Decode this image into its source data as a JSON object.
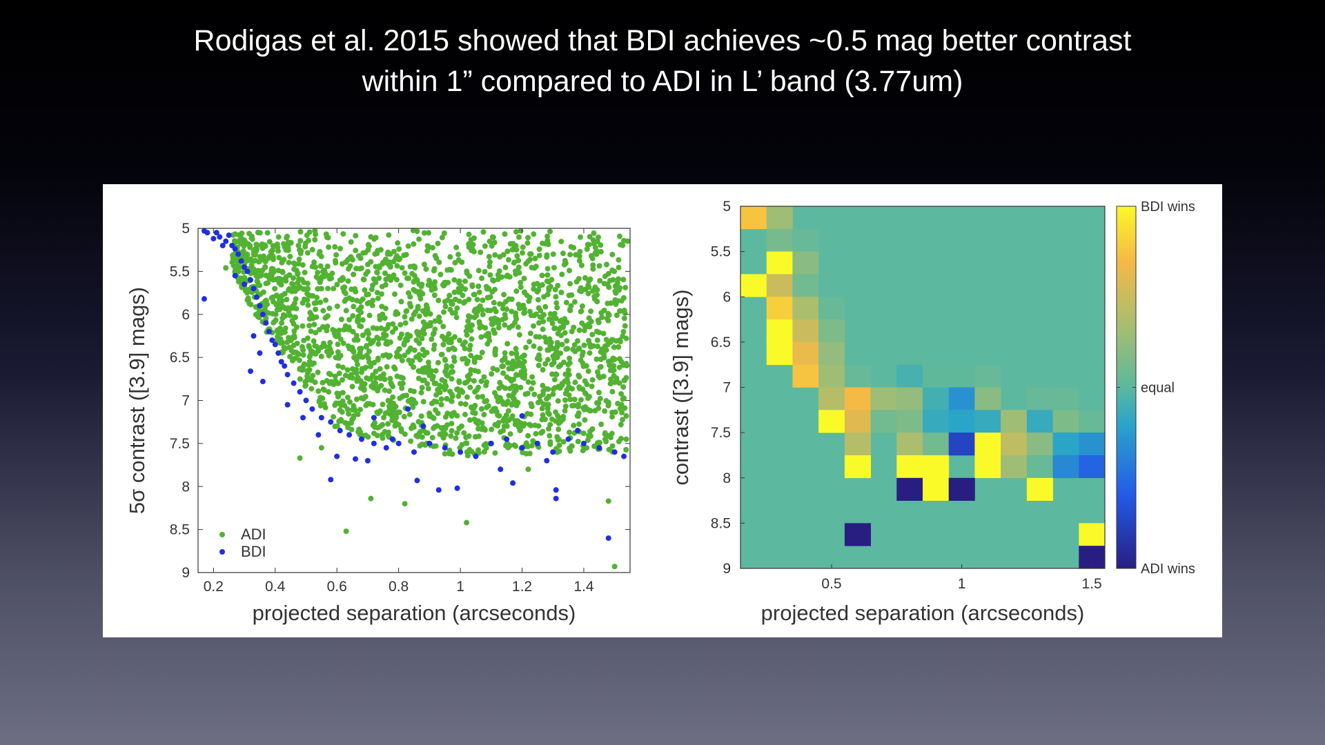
{
  "slide": {
    "title_line1": "Rodigas et al. 2015 showed that BDI achieves ~0.5 mag better contrast",
    "title_line2": "within 1” compared to ADI in L’ band (3.77um)"
  },
  "colors": {
    "adi": "#52b232",
    "bdi": "#1f2fe0",
    "background_top": "#000000",
    "background_bottom": "#6d6e82"
  },
  "chart_data": [
    {
      "type": "scatter",
      "xlabel": "projected separation (arcseconds)",
      "ylabel": "5σ contrast ([3.9] mags)",
      "xlim": [
        0.15,
        1.55
      ],
      "ylim": [
        5,
        9
      ],
      "y_inverted": true,
      "xticks": [
        0.2,
        0.4,
        0.6,
        0.8,
        1,
        1.2,
        1.4
      ],
      "xtick_labels": [
        "0.2",
        "0.4",
        "0.6",
        "0.8",
        "1",
        "1.2",
        "1.4"
      ],
      "yticks": [
        5,
        5.5,
        6,
        6.5,
        7,
        7.5,
        8,
        8.5,
        9
      ],
      "ytick_labels": [
        "5",
        "5.5",
        "6",
        "6.5",
        "7",
        "7.5",
        "8",
        "8.5",
        "9"
      ],
      "grid": false,
      "legend_position": "bottom-left",
      "series": [
        {
          "name": "ADI",
          "color": "#52b232",
          "approx_count": 2200,
          "points": [
            [
              0.48,
              7.67
            ],
            [
              0.63,
              8.52
            ],
            [
              0.71,
              8.14
            ],
            [
              0.82,
              8.2
            ],
            [
              1.02,
              8.42
            ],
            [
              1.48,
              8.17
            ],
            [
              1.5,
              8.93
            ],
            [
              1.22,
              7.8
            ],
            [
              0.95,
              7.62
            ],
            [
              0.55,
              7.55
            ],
            [
              0.24,
              5.46
            ]
          ]
        },
        {
          "name": "BDI",
          "color": "#1f2fe0",
          "points": [
            [
              0.17,
              5.03
            ],
            [
              0.18,
              5.05
            ],
            [
              0.2,
              5.12
            ],
            [
              0.21,
              5.05
            ],
            [
              0.22,
              5.1
            ],
            [
              0.23,
              5.2
            ],
            [
              0.24,
              5.15
            ],
            [
              0.25,
              5.08
            ],
            [
              0.26,
              5.2
            ],
            [
              0.27,
              5.24
            ],
            [
              0.28,
              5.3
            ],
            [
              0.29,
              5.38
            ],
            [
              0.3,
              5.45
            ],
            [
              0.31,
              5.5
            ],
            [
              0.32,
              5.6
            ],
            [
              0.33,
              5.7
            ],
            [
              0.34,
              5.8
            ],
            [
              0.35,
              5.9
            ],
            [
              0.36,
              6.0
            ],
            [
              0.37,
              6.1
            ],
            [
              0.38,
              6.2
            ],
            [
              0.39,
              6.3
            ],
            [
              0.4,
              6.35
            ],
            [
              0.41,
              6.45
            ],
            [
              0.42,
              6.55
            ],
            [
              0.43,
              6.6
            ],
            [
              0.44,
              6.7
            ],
            [
              0.46,
              6.8
            ],
            [
              0.48,
              6.9
            ],
            [
              0.5,
              7.0
            ],
            [
              0.52,
              7.1
            ],
            [
              0.55,
              7.2
            ],
            [
              0.58,
              7.25
            ],
            [
              0.61,
              7.35
            ],
            [
              0.64,
              7.4
            ],
            [
              0.68,
              7.45
            ],
            [
              0.72,
              7.5
            ],
            [
              0.76,
              7.55
            ],
            [
              0.8,
              7.5
            ],
            [
              0.85,
              7.6
            ],
            [
              0.9,
              7.5
            ],
            [
              0.95,
              7.55
            ],
            [
              1.0,
              7.6
            ],
            [
              1.05,
              7.65
            ],
            [
              1.1,
              7.5
            ],
            [
              1.15,
              7.45
            ],
            [
              1.2,
              7.55
            ],
            [
              1.25,
              7.5
            ],
            [
              1.3,
              7.6
            ],
            [
              1.35,
              7.45
            ],
            [
              1.4,
              7.5
            ],
            [
              1.45,
              7.55
            ],
            [
              1.5,
              7.6
            ],
            [
              0.17,
              5.82
            ],
            [
              0.32,
              6.66
            ],
            [
              0.36,
              6.78
            ],
            [
              0.58,
              7.92
            ],
            [
              0.66,
              7.68
            ],
            [
              0.86,
              7.93
            ],
            [
              0.93,
              8.04
            ],
            [
              0.99,
              8.02
            ],
            [
              1.17,
              7.96
            ],
            [
              1.31,
              8.04
            ],
            [
              1.31,
              8.14
            ],
            [
              1.48,
              8.6
            ],
            [
              1.2,
              7.18
            ],
            [
              0.72,
              7.2
            ],
            [
              0.3,
              5.65
            ],
            [
              0.27,
              5.55
            ],
            [
              0.33,
              6.25
            ],
            [
              0.35,
              6.45
            ],
            [
              0.44,
              7.05
            ],
            [
              0.49,
              7.2
            ],
            [
              0.54,
              7.4
            ],
            [
              0.6,
              7.65
            ],
            [
              0.7,
              7.7
            ],
            [
              0.78,
              7.45
            ],
            [
              0.83,
              7.1
            ],
            [
              0.88,
              7.3
            ],
            [
              1.13,
              7.8
            ],
            [
              1.28,
              7.7
            ],
            [
              1.38,
              7.35
            ],
            [
              1.53,
              7.65
            ]
          ]
        }
      ]
    },
    {
      "type": "heatmap",
      "xlabel": "projected separation (arcseconds)",
      "ylabel": "contrast ([3.9] mags)",
      "xlim": [
        0.15,
        1.55
      ],
      "ylim": [
        5,
        9
      ],
      "y_inverted": true,
      "x_bin_width": 0.1,
      "y_bin_width": 0.25,
      "xticks": [
        0.5,
        1,
        1.5
      ],
      "xtick_labels": [
        "0.5",
        "1",
        "1.5"
      ],
      "yticks": [
        5,
        5.5,
        6,
        6.5,
        7,
        7.5,
        8,
        8.5,
        9
      ],
      "ytick_labels": [
        "5",
        "5.5",
        "6",
        "6.5",
        "7",
        "7.5",
        "8",
        "8.5",
        "9"
      ],
      "colorbar": {
        "range": [
          -1,
          1
        ],
        "labels": [
          "BDI wins",
          "equal",
          "ADI wins"
        ],
        "label_values": [
          1,
          0,
          -1
        ]
      },
      "default_value": 0,
      "cells": [
        {
          "x": 0.2,
          "y": 5.125,
          "v": 0.75
        },
        {
          "x": 0.3,
          "y": 5.125,
          "v": 0.3
        },
        {
          "x": 0.3,
          "y": 5.375,
          "v": 0.12
        },
        {
          "x": 0.4,
          "y": 5.375,
          "v": 0.05
        },
        {
          "x": 0.3,
          "y": 5.625,
          "v": 1.0
        },
        {
          "x": 0.4,
          "y": 5.625,
          "v": 0.2
        },
        {
          "x": 0.2,
          "y": 5.875,
          "v": 1.0
        },
        {
          "x": 0.3,
          "y": 5.875,
          "v": 0.5
        },
        {
          "x": 0.4,
          "y": 5.875,
          "v": 0.1
        },
        {
          "x": 0.3,
          "y": 6.125,
          "v": 0.8
        },
        {
          "x": 0.4,
          "y": 6.125,
          "v": 0.35
        },
        {
          "x": 0.5,
          "y": 6.125,
          "v": 0.05
        },
        {
          "x": 0.3,
          "y": 6.375,
          "v": 1.0
        },
        {
          "x": 0.4,
          "y": 6.375,
          "v": 0.5
        },
        {
          "x": 0.5,
          "y": 6.375,
          "v": 0.15
        },
        {
          "x": 0.3,
          "y": 6.625,
          "v": 1.0
        },
        {
          "x": 0.4,
          "y": 6.625,
          "v": 0.65
        },
        {
          "x": 0.5,
          "y": 6.625,
          "v": 0.25
        },
        {
          "x": 0.4,
          "y": 6.875,
          "v": 0.75
        },
        {
          "x": 0.5,
          "y": 6.875,
          "v": 0.3
        },
        {
          "x": 0.6,
          "y": 6.875,
          "v": 0.05
        },
        {
          "x": 0.8,
          "y": 6.875,
          "v": -0.08
        },
        {
          "x": 0.9,
          "y": 6.875,
          "v": 0.02
        },
        {
          "x": 1.0,
          "y": 6.875,
          "v": 0.02
        },
        {
          "x": 1.1,
          "y": 6.875,
          "v": 0.05
        },
        {
          "x": 0.5,
          "y": 7.125,
          "v": 0.4
        },
        {
          "x": 0.6,
          "y": 7.125,
          "v": 0.7
        },
        {
          "x": 0.7,
          "y": 7.125,
          "v": 0.3
        },
        {
          "x": 0.8,
          "y": 7.125,
          "v": 0.25
        },
        {
          "x": 0.9,
          "y": 7.125,
          "v": -0.1
        },
        {
          "x": 1.0,
          "y": 7.125,
          "v": -0.3
        },
        {
          "x": 1.1,
          "y": 7.125,
          "v": 0.2
        },
        {
          "x": 1.3,
          "y": 7.125,
          "v": 0.05
        },
        {
          "x": 1.4,
          "y": 7.125,
          "v": 0.05
        },
        {
          "x": 0.5,
          "y": 7.375,
          "v": 1.0
        },
        {
          "x": 0.6,
          "y": 7.375,
          "v": 0.6
        },
        {
          "x": 0.7,
          "y": 7.375,
          "v": 0.1
        },
        {
          "x": 0.8,
          "y": 7.375,
          "v": 0.15
        },
        {
          "x": 0.9,
          "y": 7.375,
          "v": -0.15
        },
        {
          "x": 1.0,
          "y": 7.375,
          "v": -0.2
        },
        {
          "x": 1.1,
          "y": 7.375,
          "v": -0.15
        },
        {
          "x": 1.2,
          "y": 7.375,
          "v": 0.3
        },
        {
          "x": 1.3,
          "y": 7.375,
          "v": -0.15
        },
        {
          "x": 1.4,
          "y": 7.375,
          "v": 0.15
        },
        {
          "x": 1.5,
          "y": 7.375,
          "v": 0.05
        },
        {
          "x": 0.6,
          "y": 7.625,
          "v": 0.4
        },
        {
          "x": 0.8,
          "y": 7.625,
          "v": 0.35
        },
        {
          "x": 0.9,
          "y": 7.625,
          "v": 0.1
        },
        {
          "x": 1.0,
          "y": 7.625,
          "v": -0.75
        },
        {
          "x": 1.1,
          "y": 7.625,
          "v": 1.0
        },
        {
          "x": 1.2,
          "y": 7.625,
          "v": 0.45
        },
        {
          "x": 1.3,
          "y": 7.625,
          "v": 0.2
        },
        {
          "x": 1.4,
          "y": 7.625,
          "v": -0.2
        },
        {
          "x": 1.5,
          "y": 7.625,
          "v": -0.3
        },
        {
          "x": 0.6,
          "y": 7.875,
          "v": 1.0
        },
        {
          "x": 0.8,
          "y": 7.875,
          "v": 1.0
        },
        {
          "x": 0.9,
          "y": 7.875,
          "v": 1.0
        },
        {
          "x": 1.1,
          "y": 7.875,
          "v": 1.0
        },
        {
          "x": 1.2,
          "y": 7.875,
          "v": 0.3
        },
        {
          "x": 1.3,
          "y": 7.875,
          "v": 0.05
        },
        {
          "x": 1.4,
          "y": 7.875,
          "v": -0.35
        },
        {
          "x": 1.5,
          "y": 7.875,
          "v": -0.55
        },
        {
          "x": 0.8,
          "y": 8.125,
          "v": -1.0
        },
        {
          "x": 0.9,
          "y": 8.125,
          "v": 1.0
        },
        {
          "x": 1.0,
          "y": 8.125,
          "v": -1.0
        },
        {
          "x": 1.3,
          "y": 8.125,
          "v": 1.0
        },
        {
          "x": 0.6,
          "y": 8.625,
          "v": -1.0
        },
        {
          "x": 1.5,
          "y": 8.625,
          "v": 1.0
        },
        {
          "x": 1.5,
          "y": 8.875,
          "v": -1.0
        }
      ]
    }
  ]
}
